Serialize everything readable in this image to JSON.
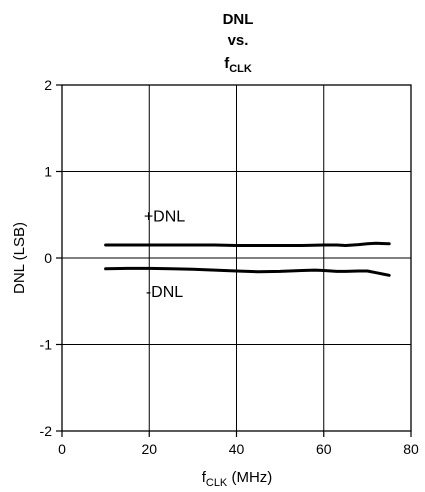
{
  "chart_data": {
    "type": "line",
    "title": {
      "line1": "DNL",
      "line2": "vs.",
      "line3_main": "f",
      "line3_sub": "CLK"
    },
    "xlabel": {
      "main": "f",
      "sub": "CLK",
      "rest": " (MHz)"
    },
    "ylabel": "DNL (LSB)",
    "xlim": [
      0,
      80
    ],
    "ylim": [
      -2,
      2
    ],
    "xticks": [
      "0",
      "20",
      "40",
      "60",
      "80"
    ],
    "yticks": [
      "2",
      "1",
      "0",
      "-1",
      "-2"
    ],
    "grid": true,
    "series": [
      {
        "name": "+DNL",
        "color": "#000000",
        "points": [
          [
            10,
            0.15
          ],
          [
            15,
            0.15
          ],
          [
            20,
            0.15
          ],
          [
            25,
            0.15
          ],
          [
            30,
            0.15
          ],
          [
            35,
            0.15
          ],
          [
            40,
            0.145
          ],
          [
            45,
            0.145
          ],
          [
            50,
            0.145
          ],
          [
            55,
            0.145
          ],
          [
            60,
            0.15
          ],
          [
            63,
            0.15
          ],
          [
            65,
            0.145
          ],
          [
            68,
            0.155
          ],
          [
            70,
            0.165
          ],
          [
            72,
            0.17
          ],
          [
            75,
            0.165
          ]
        ]
      },
      {
        "name": "-DNL",
        "color": "#000000",
        "points": [
          [
            10,
            -0.125
          ],
          [
            15,
            -0.12
          ],
          [
            20,
            -0.12
          ],
          [
            25,
            -0.125
          ],
          [
            30,
            -0.13
          ],
          [
            35,
            -0.14
          ],
          [
            40,
            -0.15
          ],
          [
            45,
            -0.16
          ],
          [
            50,
            -0.155
          ],
          [
            55,
            -0.145
          ],
          [
            58,
            -0.14
          ],
          [
            60,
            -0.145
          ],
          [
            63,
            -0.155
          ],
          [
            65,
            -0.155
          ],
          [
            68,
            -0.15
          ],
          [
            70,
            -0.15
          ],
          [
            72,
            -0.17
          ],
          [
            75,
            -0.2
          ]
        ]
      }
    ],
    "annotations": [
      {
        "text": "+DNL",
        "x": 23.5,
        "y": 0.42
      },
      {
        "text": "-DNL",
        "x": 23.5,
        "y": -0.45
      }
    ]
  }
}
